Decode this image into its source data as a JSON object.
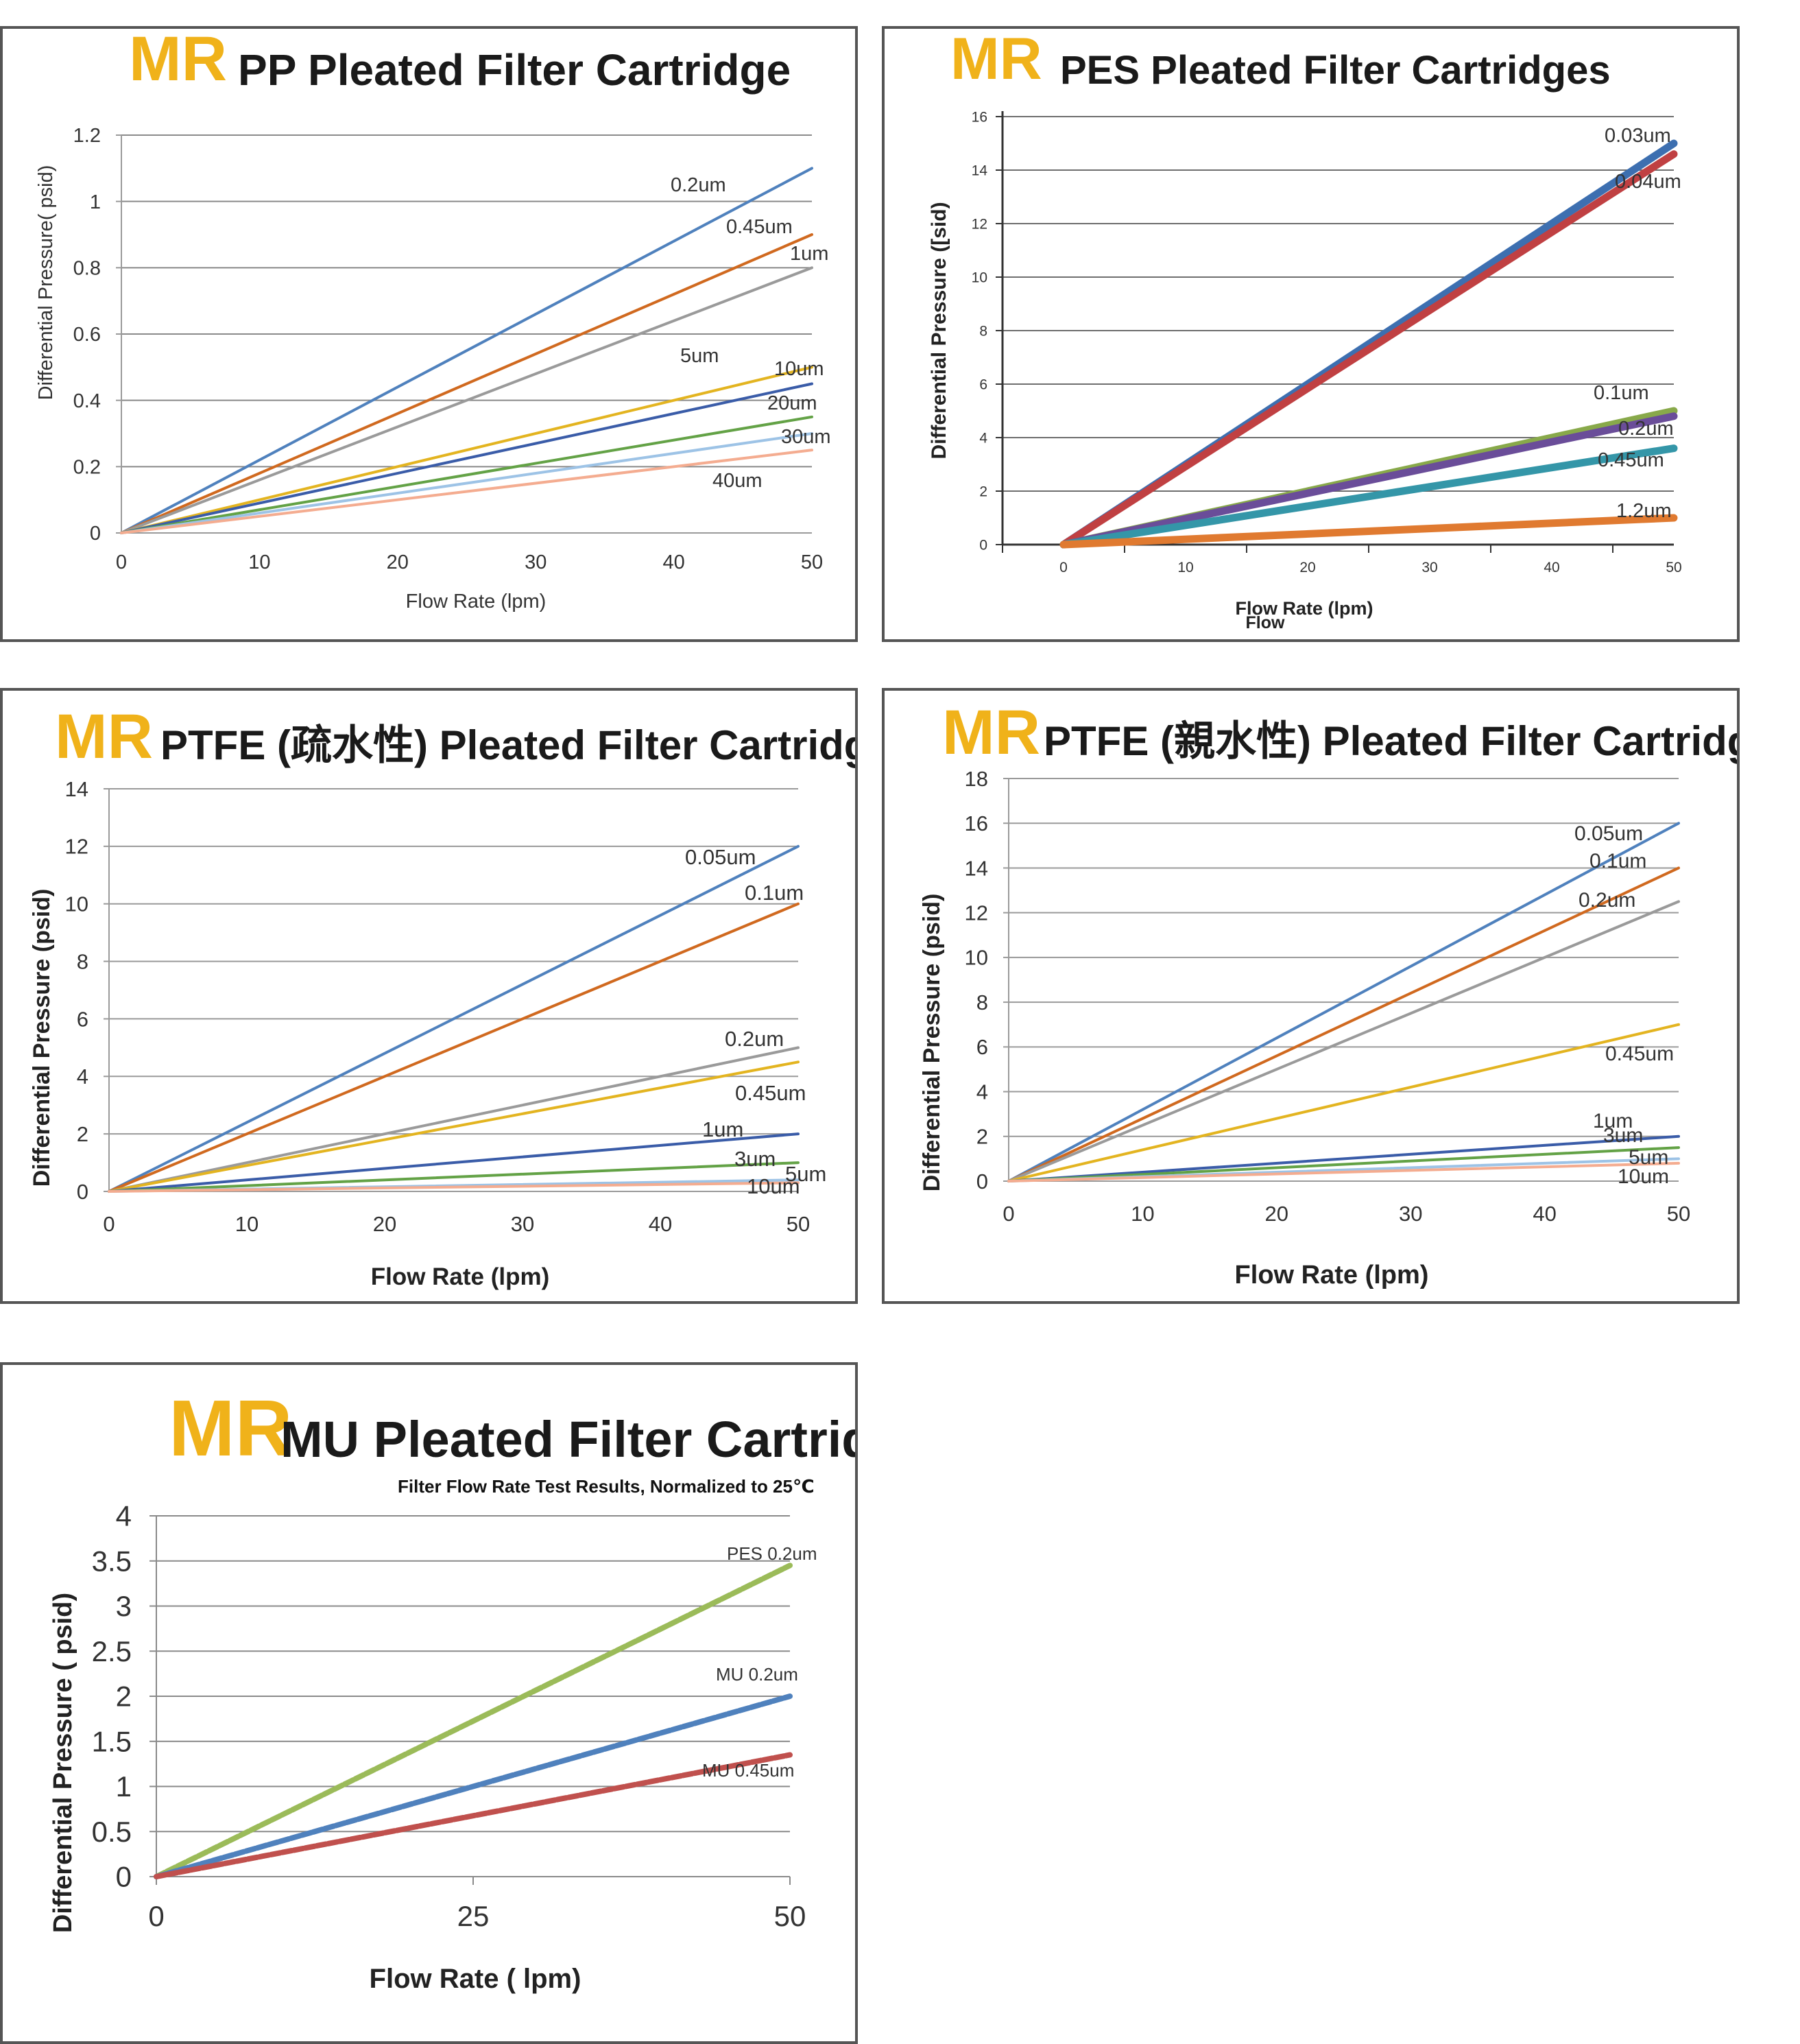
{
  "brand": "MR",
  "chart_data": [
    {
      "type": "line",
      "title": "PP Pleated Filter Cartridge",
      "xlabel": "Flow Rate (lpm)",
      "ylabel": "Differential Pressure( psid)",
      "xlim": [
        0,
        50
      ],
      "ylim": [
        0,
        1.2
      ],
      "xticks": [
        "0",
        "10",
        "20",
        "30",
        "40",
        "50"
      ],
      "yticks": [
        "0",
        "0.2",
        "0.4",
        "0.6",
        "0.8",
        "1",
        "1.2"
      ],
      "grid": true,
      "series": [
        {
          "name": "0.2um",
          "x": [
            0,
            50
          ],
          "values": [
            0,
            1.1
          ],
          "color": "#4f81bd"
        },
        {
          "name": "0.45um",
          "x": [
            0,
            50
          ],
          "values": [
            0,
            0.9
          ],
          "color": "#d0691f"
        },
        {
          "name": "1um",
          "x": [
            0,
            50
          ],
          "values": [
            0,
            0.8
          ],
          "color": "#9a9a9a"
        },
        {
          "name": "5um",
          "x": [
            0,
            50
          ],
          "values": [
            0,
            0.5
          ],
          "color": "#e3b420"
        },
        {
          "name": "10um",
          "x": [
            0,
            50
          ],
          "values": [
            0,
            0.45
          ],
          "color": "#3a5ca8"
        },
        {
          "name": "20um",
          "x": [
            0,
            50
          ],
          "values": [
            0,
            0.35
          ],
          "color": "#63a246"
        },
        {
          "name": "30um",
          "x": [
            0,
            50
          ],
          "values": [
            0,
            0.3
          ],
          "color": "#9dc3e6"
        },
        {
          "name": "40um",
          "x": [
            0,
            50
          ],
          "values": [
            0,
            0.25
          ],
          "color": "#f4ac90"
        }
      ]
    },
    {
      "type": "line",
      "title": "PES Pleated Filter Cartridges",
      "xlabel": "Flow Rate (lpm)",
      "xlabel2": "Flow",
      "ylabel": "Differential Pressure ([sid)",
      "xlim": [
        -5,
        50
      ],
      "ylim": [
        0,
        16
      ],
      "xticks": [
        "0",
        "10",
        "20",
        "30",
        "40",
        "50"
      ],
      "yticks": [
        "0",
        "2",
        "4",
        "6",
        "8",
        "10",
        "12",
        "14",
        "16"
      ],
      "grid": true,
      "series": [
        {
          "name": "0.03um",
          "x": [
            0,
            50
          ],
          "values": [
            0,
            15
          ],
          "color": "#3d6fb0"
        },
        {
          "name": "0.04um",
          "x": [
            0,
            50
          ],
          "values": [
            0,
            14.6
          ],
          "color": "#c04042"
        },
        {
          "name": "0.1um",
          "x": [
            0,
            50
          ],
          "values": [
            0,
            5
          ],
          "color": "#88a94a"
        },
        {
          "name": "0.2um",
          "x": [
            0,
            50
          ],
          "values": [
            0,
            4.8
          ],
          "color": "#6a4d99"
        },
        {
          "name": "0.45um",
          "x": [
            0,
            50
          ],
          "values": [
            0,
            3.6
          ],
          "color": "#3496a8"
        },
        {
          "name": "1.2um",
          "x": [
            0,
            50
          ],
          "values": [
            0,
            1
          ],
          "color": "#e07a30"
        }
      ]
    },
    {
      "type": "line",
      "title": "PTFE (疏水性) Pleated Filter Cartridge",
      "xlabel": "Flow Rate (lpm)",
      "ylabel": "Differential Pressure (psid)",
      "xlim": [
        0,
        50
      ],
      "ylim": [
        0,
        14
      ],
      "xticks": [
        "0",
        "10",
        "20",
        "30",
        "40",
        "50"
      ],
      "yticks": [
        "0",
        "2",
        "4",
        "6",
        "8",
        "10",
        "12",
        "14"
      ],
      "grid": true,
      "series": [
        {
          "name": "0.05um",
          "x": [
            0,
            50
          ],
          "values": [
            0,
            12
          ],
          "color": "#4f81bd"
        },
        {
          "name": "0.1um",
          "x": [
            0,
            50
          ],
          "values": [
            0,
            10
          ],
          "color": "#d0691f"
        },
        {
          "name": "0.2um",
          "x": [
            0,
            50
          ],
          "values": [
            0,
            5
          ],
          "color": "#9a9a9a"
        },
        {
          "name": "0.45um",
          "x": [
            0,
            50
          ],
          "values": [
            0,
            4.5
          ],
          "color": "#e3b420"
        },
        {
          "name": "1um",
          "x": [
            0,
            50
          ],
          "values": [
            0,
            2
          ],
          "color": "#3a5ca8"
        },
        {
          "name": "3um",
          "x": [
            0,
            50
          ],
          "values": [
            0,
            1
          ],
          "color": "#63a246"
        },
        {
          "name": "5um",
          "x": [
            0,
            50
          ],
          "values": [
            0,
            0.4
          ],
          "color": "#9dc3e6"
        },
        {
          "name": "10um",
          "x": [
            0,
            50
          ],
          "values": [
            0,
            0.3
          ],
          "color": "#f4ac90"
        }
      ]
    },
    {
      "type": "line",
      "title": "PTFE (親水性) Pleated Filter Cartridge",
      "xlabel": "Flow Rate (lpm)",
      "ylabel": "Differential Pressure (psid)",
      "xlim": [
        0,
        50
      ],
      "ylim": [
        0,
        18
      ],
      "xticks": [
        "0",
        "10",
        "20",
        "30",
        "40",
        "50"
      ],
      "yticks": [
        "0",
        "2",
        "4",
        "6",
        "8",
        "10",
        "12",
        "14",
        "16",
        "18"
      ],
      "grid": true,
      "series": [
        {
          "name": "0.05um",
          "x": [
            0,
            50
          ],
          "values": [
            0,
            16
          ],
          "color": "#4f81bd"
        },
        {
          "name": "0.1um",
          "x": [
            0,
            50
          ],
          "values": [
            0,
            14
          ],
          "color": "#d0691f"
        },
        {
          "name": "0.2um",
          "x": [
            0,
            50
          ],
          "values": [
            0,
            12.5
          ],
          "color": "#9a9a9a"
        },
        {
          "name": "0.45um",
          "x": [
            0,
            50
          ],
          "values": [
            0,
            7
          ],
          "color": "#e3b420"
        },
        {
          "name": "1um",
          "x": [
            0,
            50
          ],
          "values": [
            0,
            2
          ],
          "color": "#3a5ca8"
        },
        {
          "name": "3um",
          "x": [
            0,
            50
          ],
          "values": [
            0,
            1.5
          ],
          "color": "#63a246"
        },
        {
          "name": "5um",
          "x": [
            0,
            50
          ],
          "values": [
            0,
            1
          ],
          "color": "#9dc3e6"
        },
        {
          "name": "10um",
          "x": [
            0,
            50
          ],
          "values": [
            0,
            0.8
          ],
          "color": "#f4ac90"
        }
      ]
    },
    {
      "type": "line",
      "title": "MU Pleated Filter Cartridge",
      "subtitle": "Filter Flow Rate Test Results, Normalized to 25℃",
      "xlabel": "Flow Rate ( lpm)",
      "ylabel": "Differential Pressure ( psid)",
      "xlim": [
        0,
        50
      ],
      "ylim": [
        0,
        4
      ],
      "xticks": [
        "0",
        "25",
        "50"
      ],
      "yticks": [
        "0",
        "0.5",
        "1",
        "1.5",
        "2",
        "2.5",
        "3",
        "3.5",
        "4"
      ],
      "grid": true,
      "series": [
        {
          "name": "PES  0.2um",
          "x": [
            0,
            50
          ],
          "values": [
            0,
            3.45
          ],
          "color": "#9bbb59"
        },
        {
          "name": "MU  0.2um",
          "x": [
            0,
            50
          ],
          "values": [
            0,
            2
          ],
          "color": "#4f81bd"
        },
        {
          "name": "MU  0.45um",
          "x": [
            0,
            50
          ],
          "values": [
            0,
            1.35
          ],
          "color": "#c0504d"
        }
      ]
    }
  ]
}
